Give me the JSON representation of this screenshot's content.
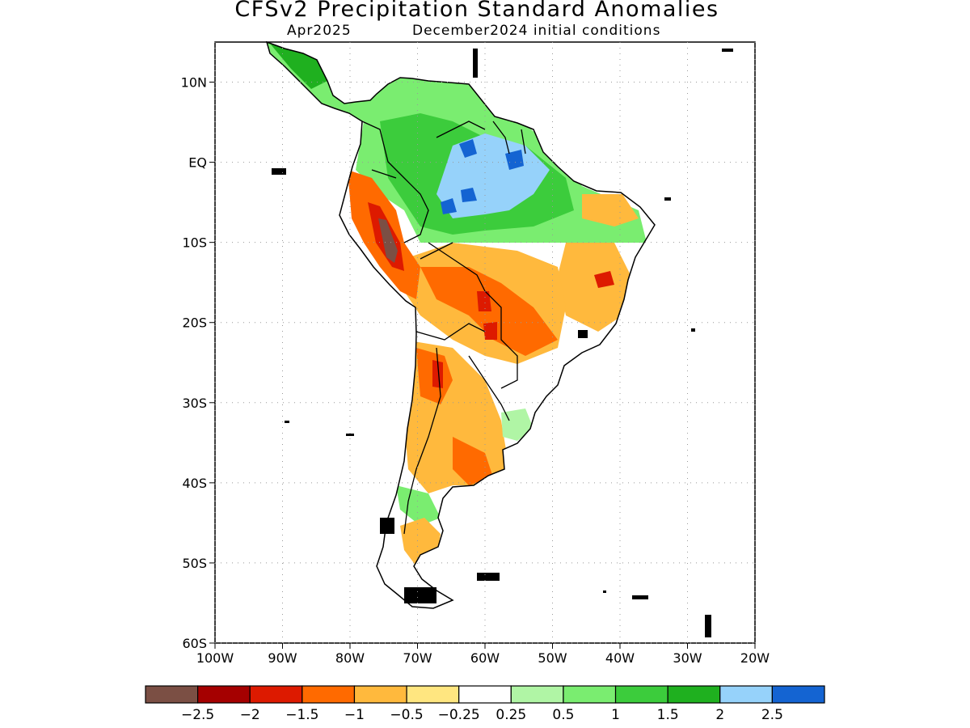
{
  "title": "CFSv2 Precipitation Standard Anomalies",
  "subtitle_month": "Apr2025",
  "subtitle_init": "December2024 initial conditions",
  "map": {
    "lon_range": [
      -100,
      -20
    ],
    "lat_range": [
      -60,
      15
    ],
    "lat_ticks": [
      "10N",
      "EQ",
      "10S",
      "20S",
      "30S",
      "40S",
      "50S",
      "60S"
    ],
    "lon_ticks": [
      "100W",
      "90W",
      "80W",
      "70W",
      "60W",
      "50W",
      "40W",
      "30W",
      "20W"
    ],
    "grid": "dotted"
  },
  "colorbar": {
    "colors": [
      "#7b4f44",
      "#a50000",
      "#dd1a00",
      "#ff6a00",
      "#ffb93d",
      "#ffe680",
      "#ffffff",
      "#b0f5a5",
      "#7aed70",
      "#3ccc3c",
      "#1fb01f",
      "#96d2fa",
      "#1464d2"
    ],
    "labels": [
      "−2.5",
      "−2",
      "−1.5",
      "−1",
      "−0.5",
      "−0.25",
      "0.25",
      "0.5",
      "1",
      "1.5",
      "2",
      "2.5"
    ]
  }
}
